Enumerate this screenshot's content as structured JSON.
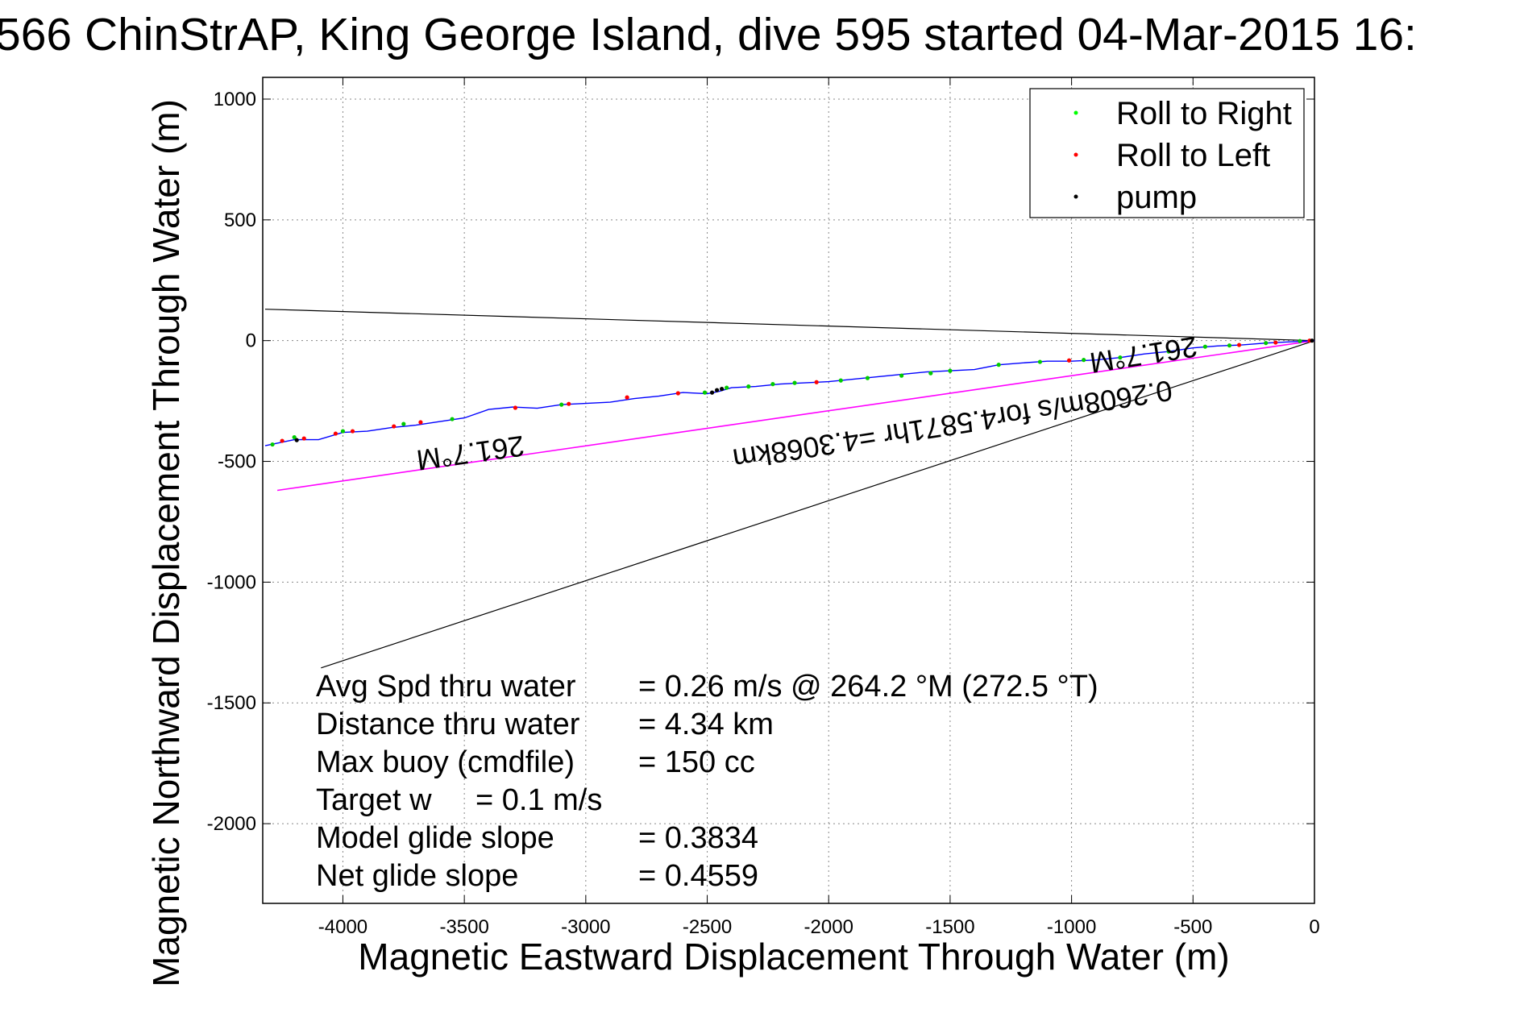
{
  "chart_data": {
    "type": "line",
    "title": "566 ChinStrAP, King George Island, dive 595 started 04-Mar-2015 16:",
    "xlabel": "Magnetic Eastward Displacement Through Water (m)",
    "ylabel": "Magnetic Northward Displacement Through Water (m)",
    "xlim": [
      -4330,
      0
    ],
    "ylim": [
      -2330,
      1090
    ],
    "xticks": [
      -4000,
      -3500,
      -3000,
      -2500,
      -2000,
      -1500,
      -1000,
      -500,
      0
    ],
    "yticks": [
      1000,
      500,
      0,
      -500,
      -1000,
      -1500,
      -2000
    ],
    "grid": true,
    "legend_position": "top-right",
    "colors": {
      "track": "#0000ff",
      "roll_right": "#00cc00",
      "roll_left": "#ff0000",
      "pump": "#000000",
      "current": "#ff00ff",
      "reference": "#000000"
    },
    "legend": [
      {
        "label": "Roll to Right",
        "color": "#00ff00"
      },
      {
        "label": "Roll to Left",
        "color": "#ff0000"
      },
      {
        "label": "pump",
        "color": "#000000"
      }
    ],
    "series": [
      {
        "name": "track",
        "x": [
          0,
          -100,
          -200,
          -300,
          -400,
          -500,
          -600,
          -700,
          -800,
          -900,
          -1000,
          -1100,
          -1200,
          -1300,
          -1400,
          -1500,
          -1600,
          -1700,
          -1800,
          -1900,
          -2000,
          -2100,
          -2200,
          -2300,
          -2400,
          -2450,
          -2500,
          -2600,
          -2700,
          -2800,
          -2900,
          -3000,
          -3100,
          -3200,
          -3300,
          -3400,
          -3500,
          -3600,
          -3700,
          -3800,
          -3900,
          -4000,
          -4100,
          -4200,
          -4320
        ],
        "y": [
          0,
          -5,
          -10,
          -18,
          -22,
          -30,
          -45,
          -55,
          -70,
          -80,
          -85,
          -85,
          -92,
          -100,
          -120,
          -125,
          -130,
          -140,
          -150,
          -160,
          -170,
          -175,
          -180,
          -190,
          -195,
          -210,
          -220,
          -215,
          -230,
          -240,
          -255,
          -260,
          -265,
          -280,
          -275,
          -285,
          -320,
          -335,
          -350,
          -360,
          -375,
          -380,
          -410,
          -410,
          -435
        ]
      },
      {
        "name": "roll_right",
        "x": [
          -60,
          -200,
          -350,
          -450,
          -600,
          -800,
          -950,
          -1130,
          -1300,
          -1500,
          -1580,
          -1700,
          -1840,
          -1950,
          -2140,
          -2230,
          -2330,
          -2420,
          -2510,
          -3100,
          -3550,
          -3750,
          -4000,
          -4200,
          -4290
        ],
        "y": [
          -2,
          -10,
          -20,
          -25,
          -45,
          -70,
          -80,
          -88,
          -100,
          -125,
          -135,
          -145,
          -155,
          -165,
          -175,
          -180,
          -190,
          -195,
          -215,
          -265,
          -325,
          -345,
          -375,
          -400,
          -430
        ]
      },
      {
        "name": "roll_left",
        "x": [
          -20,
          -160,
          -310,
          -1010,
          -2050,
          -2620,
          -2830,
          -3070,
          -3290,
          -3680,
          -3790,
          -3960,
          -4030,
          -4160,
          -4250
        ],
        "y": [
          0,
          -8,
          -18,
          -82,
          -172,
          -218,
          -235,
          -262,
          -278,
          -338,
          -355,
          -375,
          -385,
          -405,
          -415
        ]
      },
      {
        "name": "pump",
        "x": [
          -10,
          -2440,
          -2460,
          -2480,
          -4190
        ],
        "y": [
          0,
          -200,
          -205,
          -215,
          -412
        ]
      },
      {
        "name": "current",
        "x": [
          0,
          -4270
        ],
        "y": [
          0,
          -620
        ]
      },
      {
        "name": "reference_line_upper",
        "x": [
          0,
          -4320
        ],
        "y": [
          0,
          130
        ]
      },
      {
        "name": "reference_line_lower",
        "x": [
          0,
          -4090
        ],
        "y": [
          0,
          -1355
        ]
      }
    ],
    "annotations": {
      "heading_left": "261.7°M",
      "heading_right": "261.7°M",
      "current_label": "0.2608m/s for4.5871hr =4.3068km"
    },
    "stats": [
      {
        "label": "Avg Spd thru water",
        "value": "=  0.26 m/s @ 264.2 °M (272.5 °T)"
      },
      {
        "label": "Distance thru water",
        "value": "=  4.34 km"
      },
      {
        "label": "Max buoy (cmdfile)",
        "value": "= 150 cc"
      },
      {
        "label": "Target w",
        "value": "= 0.1 m/s"
      },
      {
        "label": "Model glide slope",
        "value": "= 0.3834"
      },
      {
        "label": "Net glide slope",
        "value": "= 0.4559"
      }
    ]
  }
}
